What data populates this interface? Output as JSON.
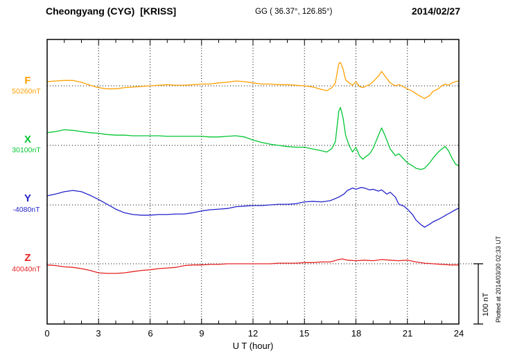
{
  "header": {
    "station_title": "Cheongyang (CYG)  [KRISS]",
    "coords": "GG ( 36.37°, 126.85°)",
    "date": "2014/02/27"
  },
  "side": {
    "scale_label": "100 nT",
    "plotted_note": "Plotted at 2014/03/30 02:33 UT"
  },
  "axis": {
    "xlabel": "U T (hour)"
  },
  "colors": {
    "frame": "#000000",
    "grid": "#000000"
  },
  "chart_data": {
    "type": "line",
    "title": "Cheongyang (CYG) [KRISS] magnetogram 2014/02/27",
    "xlabel": "U T (hour)",
    "x_range": [
      0,
      24
    ],
    "x_ticks": [
      0,
      3,
      6,
      9,
      12,
      15,
      18,
      21,
      24
    ],
    "grid": "dotted vertical at 3h intervals, dotted horizontal baseline per component",
    "scale_bar_nT": 100,
    "series": [
      {
        "name": "F",
        "baseline_label": "50260nT",
        "baseline_nT": 50260,
        "color": "#ffa000",
        "units": "nT offset from baseline",
        "points": [
          [
            0,
            7
          ],
          [
            0.5,
            8
          ],
          [
            1,
            9
          ],
          [
            1.5,
            9
          ],
          [
            2,
            6
          ],
          [
            2.5,
            1
          ],
          [
            3,
            -3
          ],
          [
            3.5,
            -5
          ],
          [
            4,
            -5
          ],
          [
            4.5,
            -3
          ],
          [
            5,
            -2
          ],
          [
            5.5,
            -1
          ],
          [
            6,
            0
          ],
          [
            6.5,
            1
          ],
          [
            7,
            2
          ],
          [
            7.5,
            1
          ],
          [
            8,
            1
          ],
          [
            8.5,
            2
          ],
          [
            9,
            3
          ],
          [
            9.5,
            3
          ],
          [
            10,
            5
          ],
          [
            10.5,
            6
          ],
          [
            11,
            8
          ],
          [
            11.5,
            7
          ],
          [
            12,
            5
          ],
          [
            12.5,
            3
          ],
          [
            13,
            3
          ],
          [
            13.5,
            2
          ],
          [
            14,
            2
          ],
          [
            14.5,
            1
          ],
          [
            15,
            0
          ],
          [
            15.5,
            -2
          ],
          [
            16,
            -6
          ],
          [
            16.3,
            -8
          ],
          [
            16.6,
            -3
          ],
          [
            16.8,
            5
          ],
          [
            17,
            37
          ],
          [
            17.1,
            39
          ],
          [
            17.25,
            28
          ],
          [
            17.4,
            10
          ],
          [
            17.6,
            5
          ],
          [
            17.8,
            1
          ],
          [
            18,
            7
          ],
          [
            18.2,
            -1
          ],
          [
            18.4,
            -3
          ],
          [
            18.6,
            0
          ],
          [
            18.8,
            2
          ],
          [
            19,
            7
          ],
          [
            19.3,
            16
          ],
          [
            19.5,
            24
          ],
          [
            19.7,
            16
          ],
          [
            20,
            5
          ],
          [
            20.3,
            0
          ],
          [
            20.5,
            2
          ],
          [
            20.8,
            -2
          ],
          [
            21,
            -5
          ],
          [
            21.3,
            -9
          ],
          [
            21.5,
            -13
          ],
          [
            21.8,
            -18
          ],
          [
            22,
            -21
          ],
          [
            22.3,
            -16
          ],
          [
            22.5,
            -9
          ],
          [
            22.8,
            -5
          ],
          [
            23,
            0
          ],
          [
            23.2,
            3
          ],
          [
            23.4,
            1
          ],
          [
            23.6,
            5
          ],
          [
            23.8,
            7
          ],
          [
            24,
            8
          ]
        ]
      },
      {
        "name": "X",
        "baseline_label": "30100nT",
        "baseline_nT": 30100,
        "color": "#00c632",
        "units": "nT offset from baseline",
        "points": [
          [
            0,
            21
          ],
          [
            0.5,
            23
          ],
          [
            1,
            26
          ],
          [
            1.5,
            25
          ],
          [
            2,
            23
          ],
          [
            2.5,
            21
          ],
          [
            3,
            20
          ],
          [
            3.5,
            18
          ],
          [
            4,
            17
          ],
          [
            4.5,
            17
          ],
          [
            5,
            16
          ],
          [
            5.5,
            16
          ],
          [
            6,
            16
          ],
          [
            6.5,
            16
          ],
          [
            7,
            15
          ],
          [
            7.5,
            15
          ],
          [
            8,
            15
          ],
          [
            8.5,
            15
          ],
          [
            9,
            15
          ],
          [
            9.5,
            14
          ],
          [
            10,
            14
          ],
          [
            10.5,
            15
          ],
          [
            11,
            16
          ],
          [
            11.5,
            14
          ],
          [
            12,
            9
          ],
          [
            12.5,
            5
          ],
          [
            13,
            2
          ],
          [
            13.5,
            0
          ],
          [
            14,
            -2
          ],
          [
            14.5,
            -3
          ],
          [
            15,
            -3
          ],
          [
            15.5,
            -6
          ],
          [
            16,
            -9
          ],
          [
            16.3,
            -11
          ],
          [
            16.6,
            -5
          ],
          [
            16.8,
            6
          ],
          [
            17,
            57
          ],
          [
            17.1,
            63
          ],
          [
            17.25,
            46
          ],
          [
            17.4,
            17
          ],
          [
            17.6,
            0
          ],
          [
            17.8,
            -11
          ],
          [
            18,
            -3
          ],
          [
            18.2,
            -17
          ],
          [
            18.4,
            -23
          ],
          [
            18.6,
            -18
          ],
          [
            18.8,
            -14
          ],
          [
            19,
            -5
          ],
          [
            19.3,
            16
          ],
          [
            19.5,
            29
          ],
          [
            19.7,
            16
          ],
          [
            20,
            -6
          ],
          [
            20.3,
            -17
          ],
          [
            20.5,
            -14
          ],
          [
            20.8,
            -23
          ],
          [
            21,
            -29
          ],
          [
            21.3,
            -34
          ],
          [
            21.5,
            -38
          ],
          [
            21.8,
            -40
          ],
          [
            22,
            -38
          ],
          [
            22.3,
            -29
          ],
          [
            22.5,
            -21
          ],
          [
            22.8,
            -11
          ],
          [
            23,
            -6
          ],
          [
            23.2,
            -2
          ],
          [
            23.4,
            -9
          ],
          [
            23.6,
            -21
          ],
          [
            23.8,
            -31
          ],
          [
            24,
            -34
          ]
        ]
      },
      {
        "name": "Y",
        "baseline_label": "-4080nT",
        "baseline_nT": -4080,
        "color": "#2222cc",
        "units": "nT offset from baseline",
        "points": [
          [
            0,
            15
          ],
          [
            0.5,
            18
          ],
          [
            1,
            22
          ],
          [
            1.5,
            24
          ],
          [
            2,
            22
          ],
          [
            2.5,
            16
          ],
          [
            3,
            9
          ],
          [
            3.5,
            1
          ],
          [
            4,
            -7
          ],
          [
            4.5,
            -13
          ],
          [
            5,
            -16
          ],
          [
            5.5,
            -17
          ],
          [
            6,
            -17
          ],
          [
            6.5,
            -16
          ],
          [
            7,
            -16
          ],
          [
            7.5,
            -15
          ],
          [
            8,
            -15
          ],
          [
            8.5,
            -13
          ],
          [
            9,
            -10
          ],
          [
            9.5,
            -8
          ],
          [
            10,
            -7
          ],
          [
            10.5,
            -6
          ],
          [
            11,
            -3
          ],
          [
            11.5,
            -2
          ],
          [
            12,
            -1
          ],
          [
            12.5,
            -1
          ],
          [
            13,
            0
          ],
          [
            13.5,
            1
          ],
          [
            14,
            1
          ],
          [
            14.5,
            2
          ],
          [
            15,
            5
          ],
          [
            15.5,
            6
          ],
          [
            16,
            5
          ],
          [
            16.5,
            7
          ],
          [
            17,
            13
          ],
          [
            17.3,
            18
          ],
          [
            17.5,
            24
          ],
          [
            17.8,
            28
          ],
          [
            18,
            26
          ],
          [
            18.3,
            29
          ],
          [
            18.5,
            28
          ],
          [
            18.8,
            25
          ],
          [
            19,
            26
          ],
          [
            19.3,
            23
          ],
          [
            19.5,
            25
          ],
          [
            19.8,
            18
          ],
          [
            20,
            21
          ],
          [
            20.3,
            13
          ],
          [
            20.5,
            1
          ],
          [
            20.8,
            -2
          ],
          [
            21,
            -7
          ],
          [
            21.3,
            -16
          ],
          [
            21.5,
            -25
          ],
          [
            21.8,
            -33
          ],
          [
            22,
            -37
          ],
          [
            22.3,
            -32
          ],
          [
            22.5,
            -28
          ],
          [
            22.8,
            -24
          ],
          [
            23,
            -21
          ],
          [
            23.3,
            -16
          ],
          [
            23.5,
            -13
          ],
          [
            23.8,
            -8
          ],
          [
            24,
            -5
          ]
        ]
      },
      {
        "name": "Z",
        "baseline_label": "40040nT",
        "baseline_nT": 40040,
        "color": "#e62020",
        "units": "nT offset from baseline",
        "points": [
          [
            0,
            -2
          ],
          [
            0.5,
            -3
          ],
          [
            1,
            -5
          ],
          [
            1.5,
            -6
          ],
          [
            2,
            -8
          ],
          [
            2.5,
            -11
          ],
          [
            3,
            -15
          ],
          [
            3.5,
            -16
          ],
          [
            4,
            -16
          ],
          [
            4.5,
            -15
          ],
          [
            5,
            -13
          ],
          [
            5.5,
            -11
          ],
          [
            6,
            -10
          ],
          [
            6.5,
            -8
          ],
          [
            7,
            -7
          ],
          [
            7.5,
            -6
          ],
          [
            8,
            -3
          ],
          [
            8.5,
            -2
          ],
          [
            9,
            -2
          ],
          [
            9.5,
            -1
          ],
          [
            10,
            -1
          ],
          [
            10.5,
            0
          ],
          [
            11,
            0
          ],
          [
            11.5,
            0
          ],
          [
            12,
            0
          ],
          [
            12.5,
            0
          ],
          [
            13,
            0
          ],
          [
            13.5,
            1
          ],
          [
            14,
            1
          ],
          [
            14.5,
            1
          ],
          [
            15,
            2
          ],
          [
            15.5,
            2
          ],
          [
            16,
            3
          ],
          [
            16.5,
            3
          ],
          [
            17,
            7
          ],
          [
            17.2,
            8
          ],
          [
            17.5,
            6
          ],
          [
            18,
            5
          ],
          [
            18.5,
            6
          ],
          [
            19,
            5
          ],
          [
            19.5,
            7
          ],
          [
            20,
            6
          ],
          [
            20.5,
            5
          ],
          [
            21,
            6
          ],
          [
            21.5,
            3
          ],
          [
            22,
            1
          ],
          [
            22.5,
            0
          ],
          [
            23,
            -1
          ],
          [
            23.5,
            -2
          ],
          [
            24,
            -2
          ]
        ]
      }
    ]
  }
}
